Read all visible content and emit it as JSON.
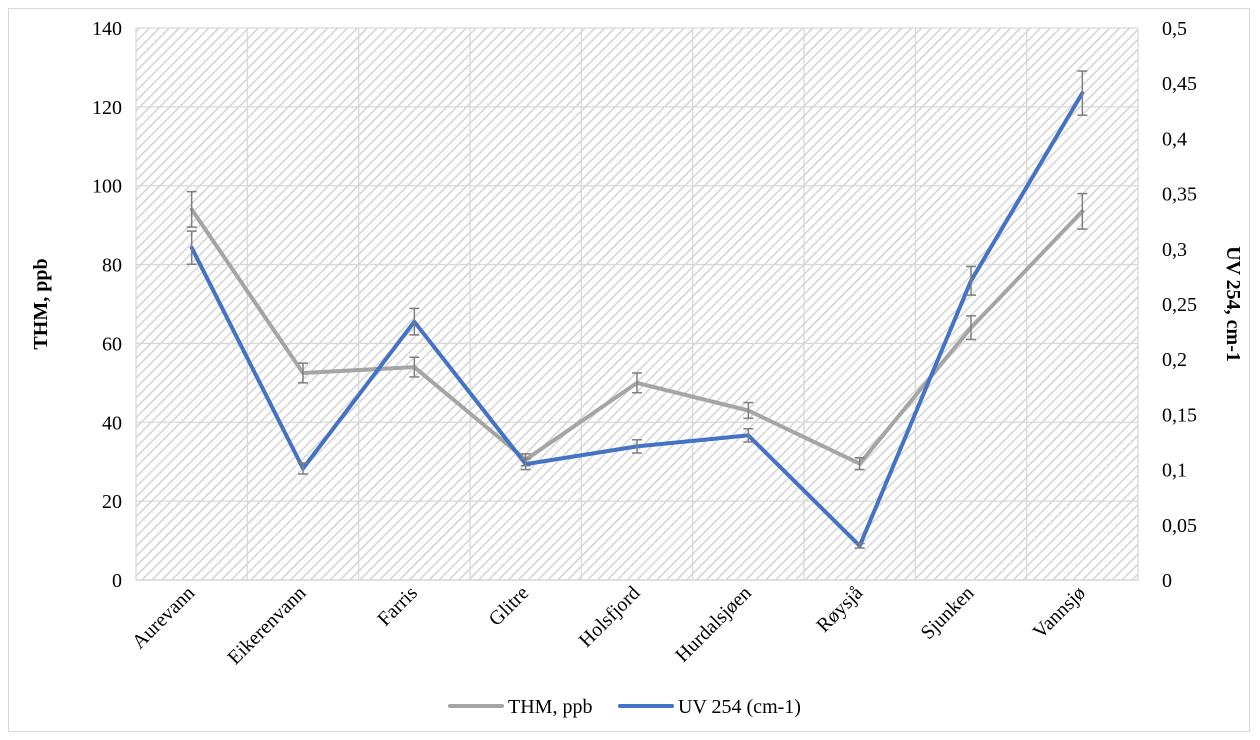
{
  "chart_data": {
    "type": "line",
    "categories": [
      "Aurevann",
      "Eikerenvann",
      "Farris",
      "Glitre",
      "Holsfjord",
      "Hurdalsjøen",
      "Røysjå",
      "Sjunken",
      "Vannsjø"
    ],
    "series": [
      {
        "name": "THM, ppb",
        "axis": "left",
        "color": "#a5a5a5",
        "values": [
          94,
          52.5,
          54,
          30.5,
          50,
          43,
          29.5,
          64,
          93.5
        ],
        "error": [
          4.5,
          2.5,
          2.5,
          1.5,
          2.5,
          2,
          1.5,
          3,
          4.5
        ]
      },
      {
        "name": "UV 254 (cm-1)",
        "axis": "right",
        "color": "#4472c4",
        "values": [
          0.301,
          0.101,
          0.234,
          0.105,
          0.121,
          0.131,
          0.031,
          0.271,
          0.441
        ],
        "error": [
          0.015,
          0.005,
          0.012,
          0.005,
          0.006,
          0.006,
          0.002,
          0.013,
          0.02
        ]
      }
    ],
    "left_axis": {
      "label": "THM, ppb",
      "ylim": [
        0,
        140
      ],
      "ticks": [
        "0",
        "20",
        "40",
        "60",
        "80",
        "100",
        "120",
        "140"
      ]
    },
    "right_axis": {
      "label": "UV 254, cm-1",
      "ylim": [
        0,
        0.5
      ],
      "ticks": [
        "0",
        "0,05",
        "0,1",
        "0,15",
        "0,2",
        "0,25",
        "0,3",
        "0,35",
        "0,4",
        "0,45",
        "0,5"
      ]
    },
    "grid": true,
    "plot_background": "hatched",
    "legend_position": "bottom",
    "colors": {
      "gridline": "#d9d9d9",
      "hatch": "#d6d6d6",
      "axis": "#d9d9d9",
      "errorbar": "#7f7f7f"
    }
  }
}
